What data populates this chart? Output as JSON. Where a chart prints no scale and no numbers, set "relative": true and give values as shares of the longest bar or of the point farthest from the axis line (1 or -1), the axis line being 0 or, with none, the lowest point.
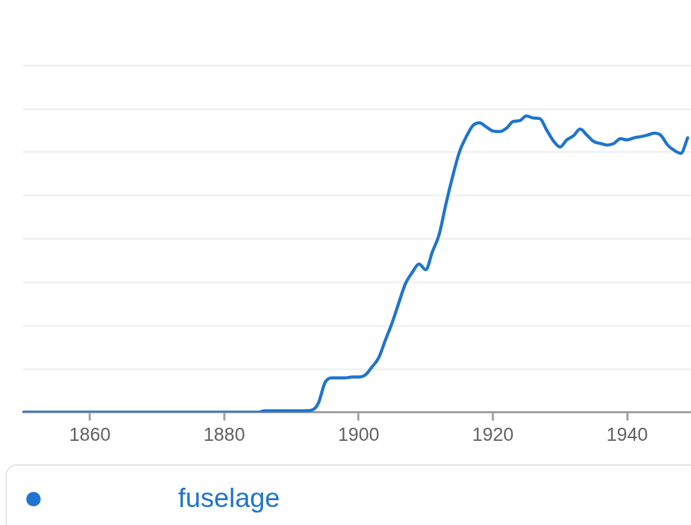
{
  "chart_data": {
    "type": "line",
    "relative": true,
    "x": [
      1850,
      1851,
      1852,
      1853,
      1854,
      1855,
      1856,
      1857,
      1858,
      1859,
      1860,
      1861,
      1862,
      1863,
      1864,
      1865,
      1866,
      1867,
      1868,
      1869,
      1870,
      1871,
      1872,
      1873,
      1874,
      1875,
      1876,
      1877,
      1878,
      1879,
      1880,
      1881,
      1882,
      1883,
      1884,
      1885,
      1886,
      1887,
      1888,
      1889,
      1890,
      1891,
      1892,
      1893,
      1894,
      1895,
      1896,
      1897,
      1898,
      1899,
      1900,
      1901,
      1902,
      1903,
      1904,
      1905,
      1906,
      1907,
      1908,
      1909,
      1910,
      1911,
      1912,
      1913,
      1914,
      1915,
      1916,
      1917,
      1918,
      1919,
      1920,
      1921,
      1922,
      1923,
      1924,
      1925,
      1926,
      1927,
      1928,
      1929,
      1930,
      1931,
      1932,
      1933,
      1934,
      1935,
      1936,
      1937,
      1938,
      1939,
      1940,
      1941,
      1942,
      1943,
      1944,
      1945,
      1946,
      1947,
      1948,
      1949
    ],
    "series": [
      {
        "name": "fuselage",
        "color": "#1f74cf",
        "values": [
          0,
          0,
          0,
          0,
          0,
          0,
          0,
          0,
          0,
          0,
          0,
          0,
          0,
          0,
          0,
          0,
          0,
          0,
          0,
          0,
          0,
          0,
          0,
          0,
          0,
          0,
          0,
          0,
          0,
          0,
          0,
          0,
          0,
          0,
          0,
          0,
          0.005,
          0.005,
          0.005,
          0.005,
          0.005,
          0.005,
          0.005,
          0.007,
          0.03,
          0.1,
          0.116,
          0.116,
          0.116,
          0.119,
          0.119,
          0.126,
          0.153,
          0.184,
          0.244,
          0.302,
          0.37,
          0.435,
          0.472,
          0.5,
          0.481,
          0.542,
          0.6,
          0.702,
          0.795,
          0.877,
          0.928,
          0.967,
          0.977,
          0.963,
          0.949,
          0.947,
          0.958,
          0.981,
          0.984,
          1,
          0.993,
          0.991,
          0.953,
          0.916,
          0.895,
          0.919,
          0.933,
          0.956,
          0.935,
          0.914,
          0.907,
          0.902,
          0.907,
          0.923,
          0.919,
          0.926,
          0.93,
          0.935,
          0.942,
          0.935,
          0.902,
          0.884,
          0.874,
          0.926
        ]
      }
    ],
    "xlim": [
      1850,
      1949.5
    ],
    "xticks": [
      1860,
      1880,
      1900,
      1920,
      1940
    ],
    "grid": "y",
    "legend": "bottom"
  }
}
